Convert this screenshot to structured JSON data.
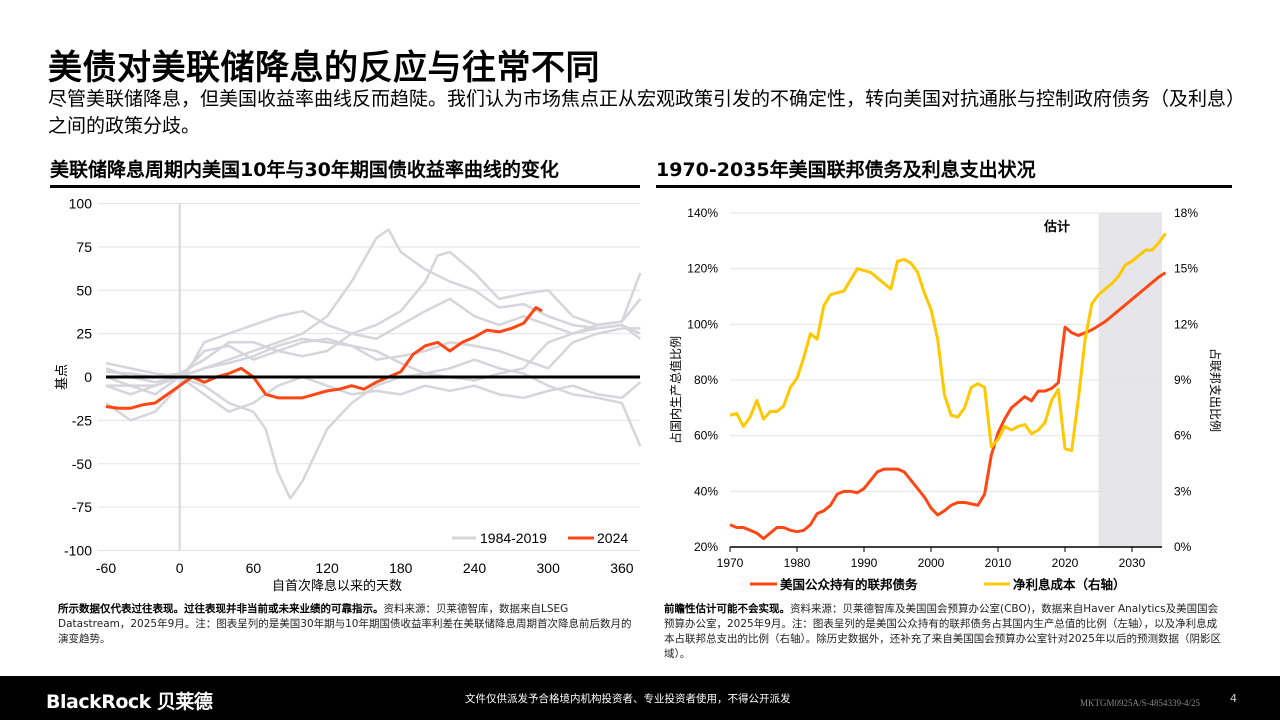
{
  "title": "美债对美联储降息的反应与往常不同",
  "subtitle": "尽管美联储降息，但美国收益率曲线反而趋陡。我们认为市场焦点正从宏观政策引发的不确定性，转向美国对抗通胀与控制政府债务（及利息）之间的政策分歧。",
  "colors": {
    "orange": "#ff4713",
    "yellow": "#ffc800",
    "gray": "#d7d5dc",
    "shade": "#e6e6ea"
  },
  "chart_data": [
    {
      "type": "line",
      "title": "美联储降息周期内美国10年与30年期国债收益率曲线的变化",
      "xlabel": "自首次降息以来的天数",
      "ylabel": "基点",
      "xlim": [
        -60,
        375
      ],
      "ylim": [
        -100,
        100
      ],
      "xticks": [
        "-60",
        "0",
        "60",
        "120",
        "180",
        "240",
        "300",
        "360"
      ],
      "yticks": [
        "100",
        "75",
        "50",
        "25",
        "0",
        "-25",
        "-50",
        "-75",
        "-100"
      ],
      "grid": true,
      "legend": {
        "position": "bottom-right",
        "entries": [
          "1984-2019",
          "2024"
        ]
      },
      "series": [
        {
          "name": "2024",
          "color": "#ff4713",
          "x": [
            -60,
            -50,
            -40,
            -30,
            -20,
            -10,
            0,
            10,
            20,
            30,
            40,
            50,
            60,
            70,
            80,
            90,
            100,
            110,
            120,
            130,
            140,
            150,
            160,
            170,
            180,
            190,
            200,
            210,
            220,
            230,
            240,
            250,
            260,
            270,
            280,
            290,
            295
          ],
          "y": [
            -17,
            -18,
            -18,
            -16,
            -15,
            -10,
            -5,
            0,
            -3,
            0,
            2,
            5,
            0,
            -10,
            -12,
            -12,
            -12,
            -10,
            -8,
            -7,
            -5,
            -7,
            -3,
            0,
            3,
            13,
            18,
            20,
            15,
            20,
            23,
            27,
            26,
            28,
            31,
            40,
            38
          ]
        },
        {
          "name": "1984-2019",
          "color": "#d7d5dc",
          "x": [
            -60,
            -40,
            -20,
            0,
            20,
            40,
            60,
            80,
            100,
            120,
            140,
            160,
            170,
            180,
            200,
            220,
            240,
            260,
            280,
            300,
            320,
            340,
            360,
            375
          ],
          "y": [
            5,
            0,
            -3,
            0,
            5,
            10,
            15,
            20,
            25,
            35,
            55,
            80,
            85,
            72,
            62,
            55,
            50,
            40,
            42,
            35,
            30,
            28,
            30,
            25
          ]
        },
        {
          "name": "1984-2019",
          "color": "#d7d5dc",
          "x": [
            -60,
            -40,
            -20,
            0,
            20,
            40,
            60,
            80,
            100,
            120,
            140,
            160,
            180,
            200,
            210,
            220,
            240,
            260,
            280,
            300,
            320,
            340,
            360,
            375
          ],
          "y": [
            3,
            2,
            0,
            2,
            10,
            20,
            20,
            15,
            12,
            15,
            25,
            30,
            38,
            55,
            70,
            72,
            60,
            45,
            48,
            50,
            35,
            30,
            32,
            60
          ]
        },
        {
          "name": "1984-2019",
          "color": "#d7d5dc",
          "x": [
            -60,
            -40,
            -20,
            0,
            20,
            40,
            60,
            70,
            80,
            90,
            100,
            110,
            120,
            140,
            160,
            180,
            200,
            220,
            240,
            260,
            280,
            300,
            320,
            340,
            360,
            375
          ],
          "y": [
            -5,
            -10,
            -5,
            0,
            -5,
            -15,
            -20,
            -30,
            -55,
            -70,
            -60,
            -45,
            -30,
            -15,
            -5,
            0,
            2,
            5,
            10,
            5,
            2,
            -5,
            -10,
            -12,
            -15,
            -40
          ]
        },
        {
          "name": "1984-2019",
          "color": "#d7d5dc",
          "x": [
            -60,
            -40,
            -20,
            0,
            20,
            40,
            60,
            80,
            100,
            120,
            140,
            160,
            180,
            200,
            220,
            240,
            260,
            280,
            300,
            320,
            340,
            360,
            375
          ],
          "y": [
            -15,
            -25,
            -20,
            -5,
            20,
            25,
            30,
            35,
            38,
            30,
            25,
            22,
            30,
            38,
            45,
            35,
            30,
            35,
            30,
            25,
            30,
            32,
            45
          ]
        },
        {
          "name": "1984-2019",
          "color": "#d7d5dc",
          "x": [
            -60,
            -40,
            -20,
            0,
            20,
            40,
            60,
            80,
            100,
            120,
            140,
            160,
            180,
            200,
            220,
            240,
            260,
            280,
            300,
            320,
            340,
            360,
            375
          ],
          "y": [
            -5,
            -5,
            -10,
            0,
            15,
            18,
            10,
            15,
            20,
            22,
            18,
            10,
            12,
            15,
            20,
            18,
            15,
            10,
            5,
            20,
            25,
            28,
            28
          ]
        },
        {
          "name": "1984-2019",
          "color": "#d7d5dc",
          "x": [
            -60,
            -40,
            -20,
            0,
            20,
            40,
            60,
            80,
            100,
            120,
            140,
            160,
            180,
            200,
            220,
            240,
            260,
            280,
            300,
            320,
            340,
            360,
            375
          ],
          "y": [
            0,
            -5,
            -5,
            0,
            -10,
            -20,
            -15,
            -5,
            0,
            -5,
            -10,
            -8,
            -10,
            -5,
            -8,
            -5,
            -10,
            -12,
            -8,
            -5,
            -10,
            -12,
            -3
          ]
        },
        {
          "name": "1984-2019",
          "color": "#d7d5dc",
          "x": [
            -60,
            -40,
            -20,
            0,
            20,
            40,
            60,
            80,
            100,
            120,
            140,
            160,
            180,
            200,
            220,
            240,
            260,
            280,
            300,
            320,
            340,
            360,
            375
          ],
          "y": [
            8,
            5,
            2,
            0,
            5,
            8,
            12,
            18,
            22,
            20,
            18,
            15,
            8,
            2,
            0,
            -2,
            2,
            5,
            20,
            25,
            28,
            30,
            22
          ]
        }
      ]
    },
    {
      "type": "line",
      "title": "1970-2035年美国联邦债务及利息支出状况",
      "xlabel": "",
      "ylabel_left": "占国内生产总值比例",
      "ylabel_right": "占联邦支出比例",
      "xlim": [
        1970,
        2035
      ],
      "ylim_left": [
        20,
        140
      ],
      "ylim_right": [
        0,
        18
      ],
      "xticks": [
        "1970",
        "1980",
        "1990",
        "2000",
        "2010",
        "2020",
        "2030"
      ],
      "yticks_left": [
        "140%",
        "120%",
        "100%",
        "80%",
        "60%",
        "40%",
        "20%"
      ],
      "yticks_right": [
        "18%",
        "15%",
        "12%",
        "9%",
        "6%",
        "3%",
        "0%"
      ],
      "annotation": "估计",
      "shaded_region": [
        2025,
        2035
      ],
      "grid": true,
      "legend": {
        "position": "bottom"
      },
      "x": [
        1970,
        1971,
        1972,
        1973,
        1974,
        1975,
        1976,
        1977,
        1978,
        1979,
        1980,
        1981,
        1982,
        1983,
        1984,
        1985,
        1986,
        1987,
        1988,
        1989,
        1990,
        1991,
        1992,
        1993,
        1994,
        1995,
        1996,
        1997,
        1998,
        1999,
        2000,
        2001,
        2002,
        2003,
        2004,
        2005,
        2006,
        2007,
        2008,
        2009,
        2010,
        2011,
        2012,
        2013,
        2014,
        2015,
        2016,
        2017,
        2018,
        2019,
        2020,
        2021,
        2022,
        2023,
        2024,
        2025,
        2026,
        2027,
        2028,
        2029,
        2030,
        2031,
        2032,
        2033,
        2034,
        2035
      ],
      "series": [
        {
          "name": "美国公众持有的联邦债务",
          "axis": "left",
          "color": "#ff4713",
          "values": [
            28,
            27,
            27,
            26,
            25,
            23,
            25,
            27,
            27,
            26,
            25.5,
            26,
            28,
            32,
            33,
            35,
            39,
            40,
            40,
            39.5,
            41,
            44,
            47,
            48,
            48,
            48,
            47,
            44,
            41,
            38,
            34,
            31.5,
            33,
            35,
            36,
            36,
            35.5,
            35,
            39,
            53,
            61,
            66,
            70,
            72,
            74,
            72.5,
            76,
            76,
            77,
            79,
            99,
            97,
            96,
            97,
            98,
            99.5,
            101,
            103,
            105,
            107,
            109,
            111,
            113,
            115,
            117,
            118.6
          ]
        },
        {
          "name": "净利息成本（右轴）",
          "axis": "right",
          "color": "#ffc800",
          "values": [
            7.1,
            7.2,
            6.5,
            7.0,
            7.9,
            6.9,
            7.3,
            7.3,
            7.6,
            8.6,
            9.1,
            10.2,
            11.5,
            11.2,
            13.0,
            13.6,
            13.7,
            13.8,
            14.4,
            15.0,
            14.9,
            14.8,
            14.5,
            14.2,
            13.9,
            15.4,
            15.5,
            15.3,
            14.8,
            13.7,
            12.8,
            11.2,
            8.2,
            7.1,
            7.0,
            7.5,
            8.6,
            8.8,
            8.6,
            5.4,
            5.8,
            6.5,
            6.3,
            6.5,
            6.6,
            6.1,
            6.3,
            6.7,
            7.9,
            8.5,
            5.3,
            5.2,
            8.0,
            11.2,
            13.1,
            13.6,
            13.9,
            14.2,
            14.6,
            15.2,
            15.4,
            15.7,
            16.0,
            16.0,
            16.4,
            16.9
          ]
        }
      ]
    }
  ],
  "notes": {
    "left_bold": "所示数据仅代表过往表现。过往表现并非当前或未来业绩的可靠指示。",
    "left_text": "资料来源：贝莱德智库，数据来自LSEG Datastream，2025年9月。注：图表呈列的是美国30年期与10年期国债收益率利差在美联储降息周期首次降息前后数月的演变趋势。",
    "right_bold": "前瞻性估计可能不会实现。",
    "right_text": "资料来源：贝莱德智库及美国国会预算办公室(CBO)，数据来自Haver Analytics及美国国会预算办公室，2025年9月。注：图表呈列的是美国公众持有的联邦债务占其国内生产总值的比例（左轴），以及净利息成本占联邦总支出的比例（右轴）。除历史数据外，还补充了来自美国国会预算办公室针对2025年以后的预测数据（阴影区域）。"
  },
  "footer": {
    "logo": "BlackRock 贝莱德",
    "disclaimer": "文件仅供派发予合格境内机构投资者、专业投资者使用，不得公开派发",
    "code": "MKTGM0925A/S-4854339-4/25",
    "page": "4"
  }
}
